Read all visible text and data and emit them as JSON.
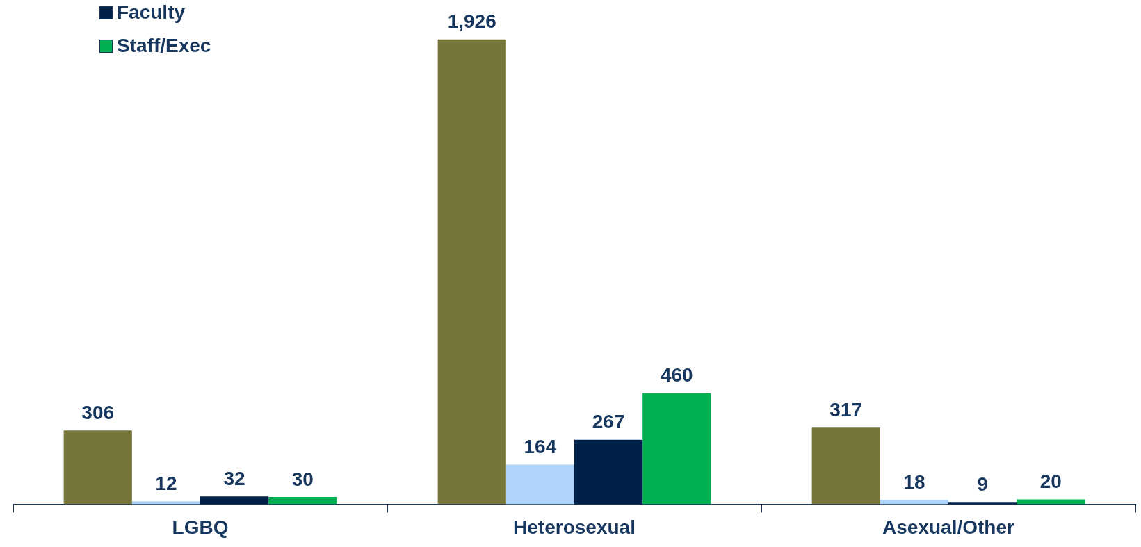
{
  "chart_data": {
    "type": "bar",
    "categories": [
      "LGBQ",
      "Heterosexual",
      "Asexual/Other"
    ],
    "series": [
      {
        "color": "#77763a",
        "values": [
          306,
          1926,
          317
        ],
        "value_labels": [
          "306",
          "1,926",
          "317"
        ]
      },
      {
        "color": "#aed4fb",
        "values": [
          12,
          164,
          18
        ],
        "value_labels": [
          "12",
          "164",
          "18"
        ]
      },
      {
        "name": "Faculty",
        "color": "#002147",
        "values": [
          32,
          267,
          9
        ],
        "value_labels": [
          "32",
          "267",
          "9"
        ]
      },
      {
        "name": "Staff/Exec",
        "color": "#00b050",
        "values": [
          30,
          460,
          20
        ],
        "value_labels": [
          "30",
          "460",
          "20"
        ]
      }
    ],
    "relative": false,
    "grid": false,
    "legend": "top left"
  }
}
